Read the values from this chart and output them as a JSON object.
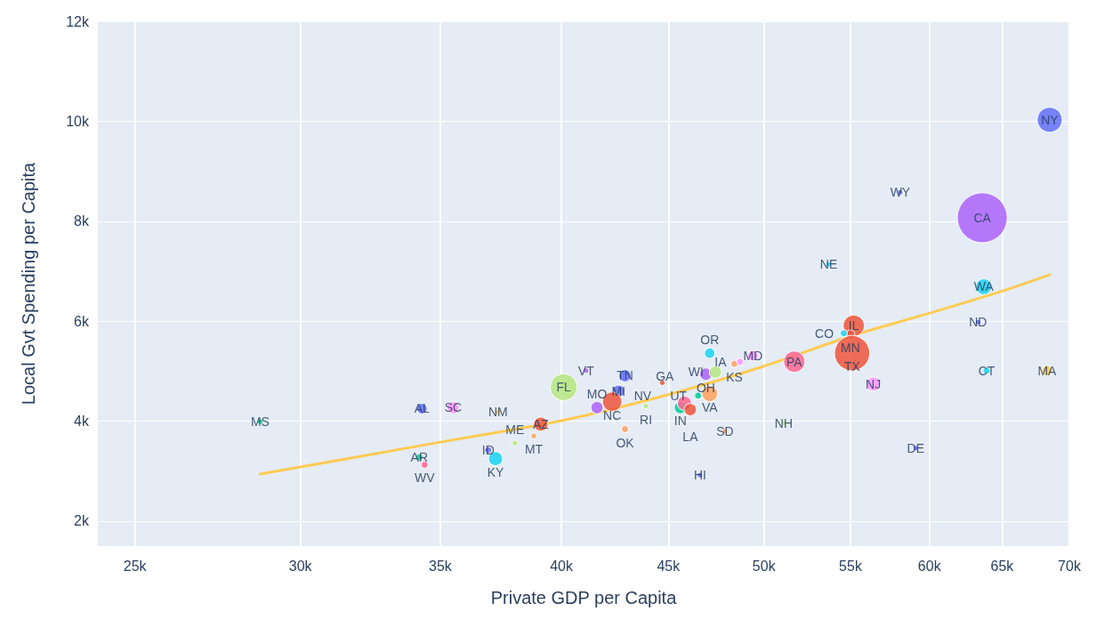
{
  "chart_data": {
    "type": "bubble",
    "xlabel": "Private GDP per Capita",
    "ylabel": "Local Gvt Spending per Capita",
    "log": "x",
    "xlim": [
      24000,
      70000
    ],
    "ylim": [
      1500,
      12000
    ],
    "xticks": [
      {
        "value": 25000,
        "label": "25k"
      },
      {
        "value": 30000,
        "label": "30k"
      },
      {
        "value": 35000,
        "label": "35k"
      },
      {
        "value": 40000,
        "label": "40k"
      },
      {
        "value": 45000,
        "label": "45k"
      },
      {
        "value": 50000,
        "label": "50k"
      },
      {
        "value": 55000,
        "label": "55k"
      },
      {
        "value": 60000,
        "label": "60k"
      },
      {
        "value": 65000,
        "label": "65k"
      },
      {
        "value": 70000,
        "label": "70k"
      }
    ],
    "yticks": [
      {
        "value": 2000,
        "label": "2k"
      },
      {
        "value": 4000,
        "label": "4k"
      },
      {
        "value": 6000,
        "label": "6k"
      },
      {
        "value": 8000,
        "label": "8k"
      },
      {
        "value": 10000,
        "label": "10k"
      },
      {
        "value": 12000,
        "label": "12k"
      }
    ],
    "grid": true,
    "series": [
      {
        "x": [
          68500,
          63600,
          58100,
          53700,
          63700,
          63300,
          55200,
          55000,
          54600,
          55100,
          51700,
          56400,
          63900,
          68300,
          59100,
          51100,
          47900,
          46600,
          49400,
          48400,
          48700,
          47100,
          46900,
          47400,
          47100,
          46500,
          45600,
          45800,
          46100,
          42900,
          44700,
          42600,
          42300,
          41600,
          43900,
          42900,
          41100,
          40100,
          34300,
          35500,
          37300,
          39100,
          38800,
          38000,
          36900,
          37200,
          34200,
          34400,
          28700
        ],
        "values": [
          10030,
          8070,
          8580,
          7140,
          6690,
          5980,
          5910,
          5740,
          5760,
          5360,
          5190,
          4740,
          5010,
          5010,
          3460,
          3960,
          3800,
          2920,
          5310,
          5150,
          5190,
          5360,
          4940,
          4980,
          4550,
          4510,
          4270,
          4360,
          4230,
          4910,
          4770,
          4600,
          4390,
          4270,
          4300,
          3840,
          5010,
          4680,
          4250,
          4270,
          4180,
          3940,
          3700,
          3560,
          3420,
          3250,
          3280,
          3130,
          3990
        ],
        "sizes": [
          0.25,
          1,
          0.012,
          0.012,
          0.1,
          0.012,
          0.18,
          0.03,
          0.02,
          0.5,
          0.18,
          0.08,
          0.02,
          0.045,
          0.012,
          0.012,
          0.012,
          0.012,
          0.045,
          0.02,
          0.02,
          0.045,
          0.06,
          0.06,
          0.1,
          0.02,
          0.06,
          0.08,
          0.06,
          0.06,
          0.012,
          0.06,
          0.15,
          0.06,
          0.012,
          0.02,
          0.012,
          0.29,
          0.045,
          0.06,
          0.012,
          0.08,
          0.012,
          0.012,
          0.02,
          0.08,
          0.02,
          0.02,
          0.012
        ],
        "colors": [
          "#636efa",
          "#ab63fa",
          "#636efa",
          "#19d3f3",
          "#19d3f3",
          "#636efa",
          "#ef553b",
          "#ef553b",
          "#19d3f3",
          "#ef553b",
          "#ff6692",
          "#ff97ff",
          "#19d3f3",
          "#fecb52",
          "#636efa",
          "#b6e880",
          "#ffa15a",
          "#636efa",
          "#ff97ff",
          "#ffa15a",
          "#ff97ff",
          "#19d3f3",
          "#ab63fa",
          "#b6e880",
          "#ffa15a",
          "#00cc96",
          "#00cc96",
          "#ff6692",
          "#ef553b",
          "#636efa",
          "#ef553b",
          "#636efa",
          "#ef553b",
          "#ab63fa",
          "#b6e880",
          "#ffa15a",
          "#ab63fa",
          "#b6e880",
          "#636efa",
          "#ff97ff",
          "#fecb52",
          "#ef553b",
          "#ffa15a",
          "#b6e880",
          "#636efa",
          "#19d3f3",
          "#00cc96",
          "#ff6692",
          "#00cc96"
        ],
        "value_labels": [
          "NY",
          "CA",
          "WY",
          "NE",
          "WA",
          "ND",
          "IL",
          "MN",
          "CO",
          "TX",
          "PA",
          "NJ",
          "CT",
          "MA",
          "DE",
          "NH",
          "SD",
          "HI",
          "MD",
          "KS",
          "IA",
          "OR",
          "OH",
          "WI",
          "VA",
          "UT",
          "IN",
          "GA",
          "LA",
          "TN",
          "NV",
          "MI",
          "NC",
          "MO",
          "RI",
          "OK",
          "VT",
          "FL",
          "AL",
          "SC",
          "NM",
          "AZ",
          "MT",
          "ME",
          "ID",
          "KY",
          "AR",
          "WV",
          "MS"
        ]
      },
      {
        "type": "line",
        "color": "#fecb52",
        "x": [
          28700,
          35000,
          40000,
          45000,
          50000,
          55000,
          60000,
          65000,
          68500
        ],
        "values": [
          2940,
          3580,
          4010,
          4530,
          5100,
          5700,
          6160,
          6600,
          6930
        ]
      }
    ]
  }
}
